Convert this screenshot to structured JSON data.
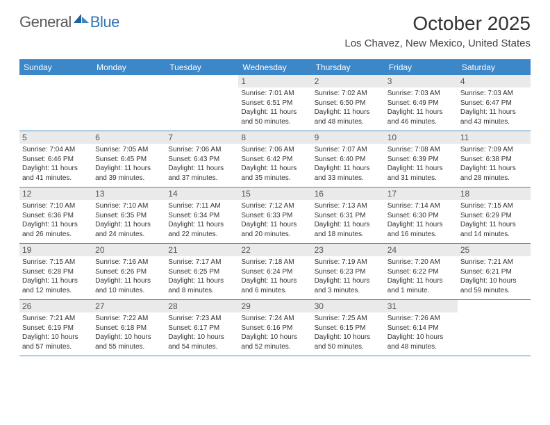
{
  "logo": {
    "text1": "General",
    "text2": "Blue"
  },
  "title": "October 2025",
  "location": "Los Chavez, New Mexico, United States",
  "colors": {
    "header_bg": "#3b87c8",
    "header_text": "#ffffff",
    "daynum_bg": "#eaeaea",
    "row_border": "#3b87c8",
    "logo_gray": "#5a5a5a",
    "logo_blue": "#2e75b6"
  },
  "weekdays": [
    "Sunday",
    "Monday",
    "Tuesday",
    "Wednesday",
    "Thursday",
    "Friday",
    "Saturday"
  ],
  "weeks": [
    [
      {
        "blank": true
      },
      {
        "blank": true
      },
      {
        "blank": true
      },
      {
        "n": "1",
        "sunrise": "7:01 AM",
        "sunset": "6:51 PM",
        "daylight": "11 hours and 50 minutes."
      },
      {
        "n": "2",
        "sunrise": "7:02 AM",
        "sunset": "6:50 PM",
        "daylight": "11 hours and 48 minutes."
      },
      {
        "n": "3",
        "sunrise": "7:03 AM",
        "sunset": "6:49 PM",
        "daylight": "11 hours and 46 minutes."
      },
      {
        "n": "4",
        "sunrise": "7:03 AM",
        "sunset": "6:47 PM",
        "daylight": "11 hours and 43 minutes."
      }
    ],
    [
      {
        "n": "5",
        "sunrise": "7:04 AM",
        "sunset": "6:46 PM",
        "daylight": "11 hours and 41 minutes."
      },
      {
        "n": "6",
        "sunrise": "7:05 AM",
        "sunset": "6:45 PM",
        "daylight": "11 hours and 39 minutes."
      },
      {
        "n": "7",
        "sunrise": "7:06 AM",
        "sunset": "6:43 PM",
        "daylight": "11 hours and 37 minutes."
      },
      {
        "n": "8",
        "sunrise": "7:06 AM",
        "sunset": "6:42 PM",
        "daylight": "11 hours and 35 minutes."
      },
      {
        "n": "9",
        "sunrise": "7:07 AM",
        "sunset": "6:40 PM",
        "daylight": "11 hours and 33 minutes."
      },
      {
        "n": "10",
        "sunrise": "7:08 AM",
        "sunset": "6:39 PM",
        "daylight": "11 hours and 31 minutes."
      },
      {
        "n": "11",
        "sunrise": "7:09 AM",
        "sunset": "6:38 PM",
        "daylight": "11 hours and 28 minutes."
      }
    ],
    [
      {
        "n": "12",
        "sunrise": "7:10 AM",
        "sunset": "6:36 PM",
        "daylight": "11 hours and 26 minutes."
      },
      {
        "n": "13",
        "sunrise": "7:10 AM",
        "sunset": "6:35 PM",
        "daylight": "11 hours and 24 minutes."
      },
      {
        "n": "14",
        "sunrise": "7:11 AM",
        "sunset": "6:34 PM",
        "daylight": "11 hours and 22 minutes."
      },
      {
        "n": "15",
        "sunrise": "7:12 AM",
        "sunset": "6:33 PM",
        "daylight": "11 hours and 20 minutes."
      },
      {
        "n": "16",
        "sunrise": "7:13 AM",
        "sunset": "6:31 PM",
        "daylight": "11 hours and 18 minutes."
      },
      {
        "n": "17",
        "sunrise": "7:14 AM",
        "sunset": "6:30 PM",
        "daylight": "11 hours and 16 minutes."
      },
      {
        "n": "18",
        "sunrise": "7:15 AM",
        "sunset": "6:29 PM",
        "daylight": "11 hours and 14 minutes."
      }
    ],
    [
      {
        "n": "19",
        "sunrise": "7:15 AM",
        "sunset": "6:28 PM",
        "daylight": "11 hours and 12 minutes."
      },
      {
        "n": "20",
        "sunrise": "7:16 AM",
        "sunset": "6:26 PM",
        "daylight": "11 hours and 10 minutes."
      },
      {
        "n": "21",
        "sunrise": "7:17 AM",
        "sunset": "6:25 PM",
        "daylight": "11 hours and 8 minutes."
      },
      {
        "n": "22",
        "sunrise": "7:18 AM",
        "sunset": "6:24 PM",
        "daylight": "11 hours and 6 minutes."
      },
      {
        "n": "23",
        "sunrise": "7:19 AM",
        "sunset": "6:23 PM",
        "daylight": "11 hours and 3 minutes."
      },
      {
        "n": "24",
        "sunrise": "7:20 AM",
        "sunset": "6:22 PM",
        "daylight": "11 hours and 1 minute."
      },
      {
        "n": "25",
        "sunrise": "7:21 AM",
        "sunset": "6:21 PM",
        "daylight": "10 hours and 59 minutes."
      }
    ],
    [
      {
        "n": "26",
        "sunrise": "7:21 AM",
        "sunset": "6:19 PM",
        "daylight": "10 hours and 57 minutes."
      },
      {
        "n": "27",
        "sunrise": "7:22 AM",
        "sunset": "6:18 PM",
        "daylight": "10 hours and 55 minutes."
      },
      {
        "n": "28",
        "sunrise": "7:23 AM",
        "sunset": "6:17 PM",
        "daylight": "10 hours and 54 minutes."
      },
      {
        "n": "29",
        "sunrise": "7:24 AM",
        "sunset": "6:16 PM",
        "daylight": "10 hours and 52 minutes."
      },
      {
        "n": "30",
        "sunrise": "7:25 AM",
        "sunset": "6:15 PM",
        "daylight": "10 hours and 50 minutes."
      },
      {
        "n": "31",
        "sunrise": "7:26 AM",
        "sunset": "6:14 PM",
        "daylight": "10 hours and 48 minutes."
      },
      {
        "blank": true
      }
    ]
  ]
}
